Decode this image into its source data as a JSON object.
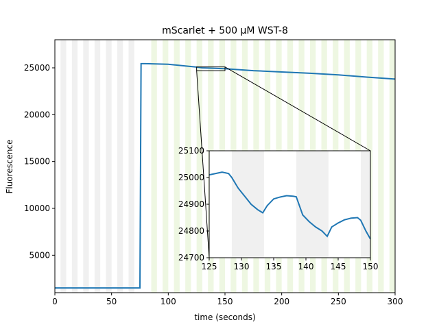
{
  "chart_data": {
    "type": "line",
    "title": "mScarlet + 500 µM WST-8",
    "xlabel": "time (seconds)",
    "ylabel": "Fluorescence",
    "xlim": [
      0,
      300
    ],
    "ylim": [
      1000,
      28000
    ],
    "xticks": [
      0,
      50,
      100,
      150,
      200,
      250,
      300
    ],
    "yticks": [
      5000,
      10000,
      15000,
      20000,
      25000
    ],
    "grid": false,
    "line_color": "#1f77b4",
    "shading": {
      "dark_color": "#f0f0f0",
      "light_color": "#eef7e2",
      "dark_period": [
        0,
        75
      ],
      "light_period": [
        75,
        300
      ],
      "pulse_on": 5,
      "pulse_off": 5
    },
    "series": [
      {
        "points": [
          [
            0,
            1500
          ],
          [
            74,
            1500
          ],
          [
            75,
            1500
          ],
          [
            76,
            25450
          ],
          [
            80,
            25450
          ],
          [
            100,
            25380
          ],
          [
            125,
            25080
          ],
          [
            130,
            25000
          ],
          [
            150,
            24910
          ],
          [
            175,
            24700
          ],
          [
            200,
            24560
          ],
          [
            225,
            24420
          ],
          [
            250,
            24250
          ],
          [
            275,
            24010
          ],
          [
            300,
            23800
          ]
        ]
      }
    ],
    "inset": {
      "xlim": [
        125,
        150
      ],
      "ylim": [
        24700,
        25100
      ],
      "xticks": [
        125,
        130,
        135,
        140,
        145,
        150
      ],
      "yticks": [
        24700,
        24800,
        24900,
        25000,
        25100
      ],
      "shaded_intervals": [
        [
          128.5,
          133.5
        ],
        [
          138.5,
          143.5
        ],
        [
          148.5,
          150
        ]
      ],
      "points": [
        [
          125,
          25010
        ],
        [
          126,
          25015
        ],
        [
          127,
          25020
        ],
        [
          128,
          25015
        ],
        [
          128.5,
          25000
        ],
        [
          129.5,
          24960
        ],
        [
          130.5,
          24930
        ],
        [
          131.5,
          24900
        ],
        [
          132.5,
          24880
        ],
        [
          133.3,
          24868
        ],
        [
          134,
          24895
        ],
        [
          135,
          24920
        ],
        [
          136,
          24927
        ],
        [
          137,
          24932
        ],
        [
          138,
          24930
        ],
        [
          138.5,
          24928
        ],
        [
          139.5,
          24860
        ],
        [
          140.5,
          24835
        ],
        [
          141.5,
          24815
        ],
        [
          142.5,
          24800
        ],
        [
          143.3,
          24780
        ],
        [
          144,
          24815
        ],
        [
          145,
          24830
        ],
        [
          146,
          24842
        ],
        [
          147,
          24848
        ],
        [
          148,
          24850
        ],
        [
          148.5,
          24840
        ],
        [
          149.3,
          24800
        ],
        [
          150,
          24770
        ]
      ]
    }
  }
}
